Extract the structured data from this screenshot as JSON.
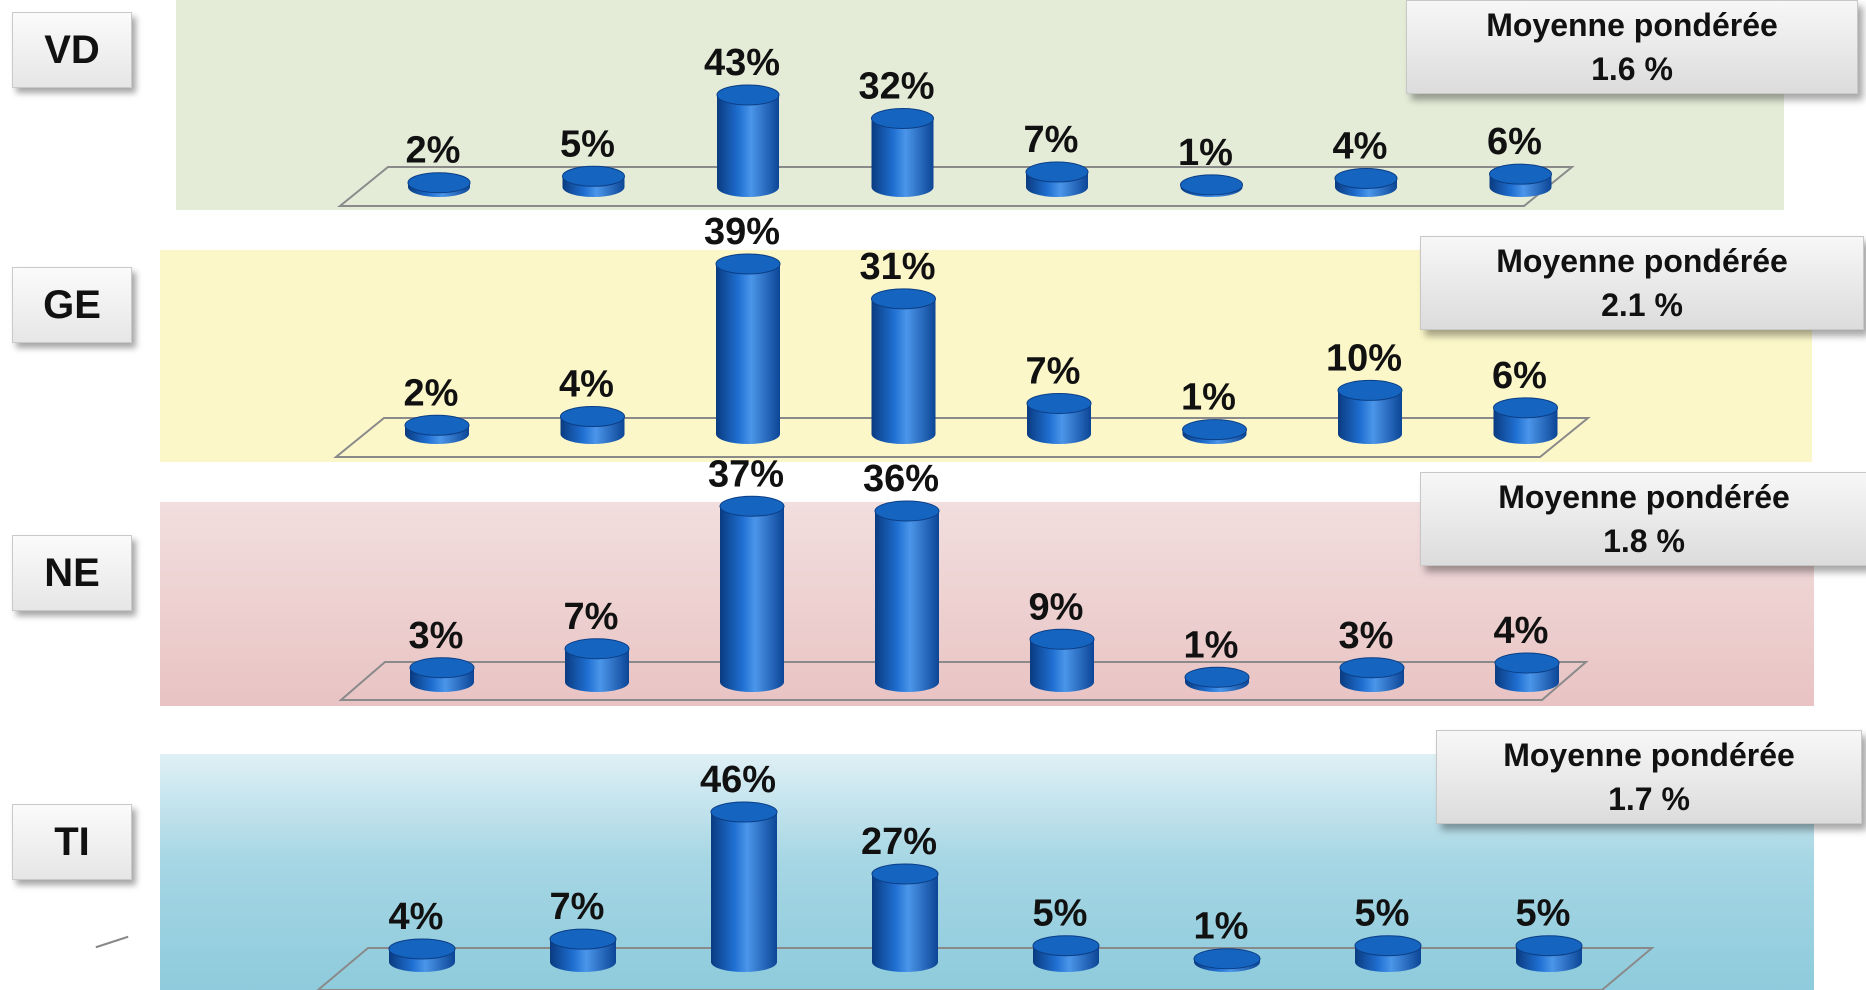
{
  "colors": {
    "bar": "#1565c0",
    "bar_dark": "#0b3e86",
    "bar_light": "#4a90e2"
  },
  "avg_title": "Moyenne pondérée",
  "panels": [
    {
      "code": "VD",
      "avg": "1.6 %",
      "band": "#e4ecd8"
    },
    {
      "code": "GE",
      "avg": "2.1 %",
      "band": "#fbf7c8"
    },
    {
      "code": "NE",
      "avg": "1.8 %",
      "band": "#efcfcf"
    },
    {
      "code": "TI",
      "avg": "1.7 %",
      "band": "#a8d8e6"
    }
  ],
  "chart_data": [
    {
      "type": "bar",
      "title": "VD",
      "values": [
        2,
        5,
        43,
        32,
        7,
        1,
        4,
        6
      ],
      "labels": [
        "2%",
        "5%",
        "43%",
        "32%",
        "7%",
        "1%",
        "4%",
        "6%"
      ],
      "unit": "%"
    },
    {
      "type": "bar",
      "title": "GE",
      "values": [
        2,
        4,
        39,
        31,
        7,
        1,
        10,
        6
      ],
      "labels": [
        "2%",
        "4%",
        "39%",
        "31%",
        "7%",
        "1%",
        "10%",
        "6%"
      ],
      "unit": "%"
    },
    {
      "type": "bar",
      "title": "NE",
      "values": [
        3,
        7,
        37,
        36,
        9,
        1,
        3,
        4
      ],
      "labels": [
        "3%",
        "7%",
        "37%",
        "36%",
        "9%",
        "1%",
        "3%",
        "4%"
      ],
      "unit": "%"
    },
    {
      "type": "bar",
      "title": "TI",
      "values": [
        4,
        7,
        46,
        27,
        5,
        1,
        5,
        5
      ],
      "labels": [
        "4%",
        "7%",
        "46%",
        "27%",
        "5%",
        "1%",
        "5%",
        "5%"
      ],
      "unit": "%"
    }
  ]
}
